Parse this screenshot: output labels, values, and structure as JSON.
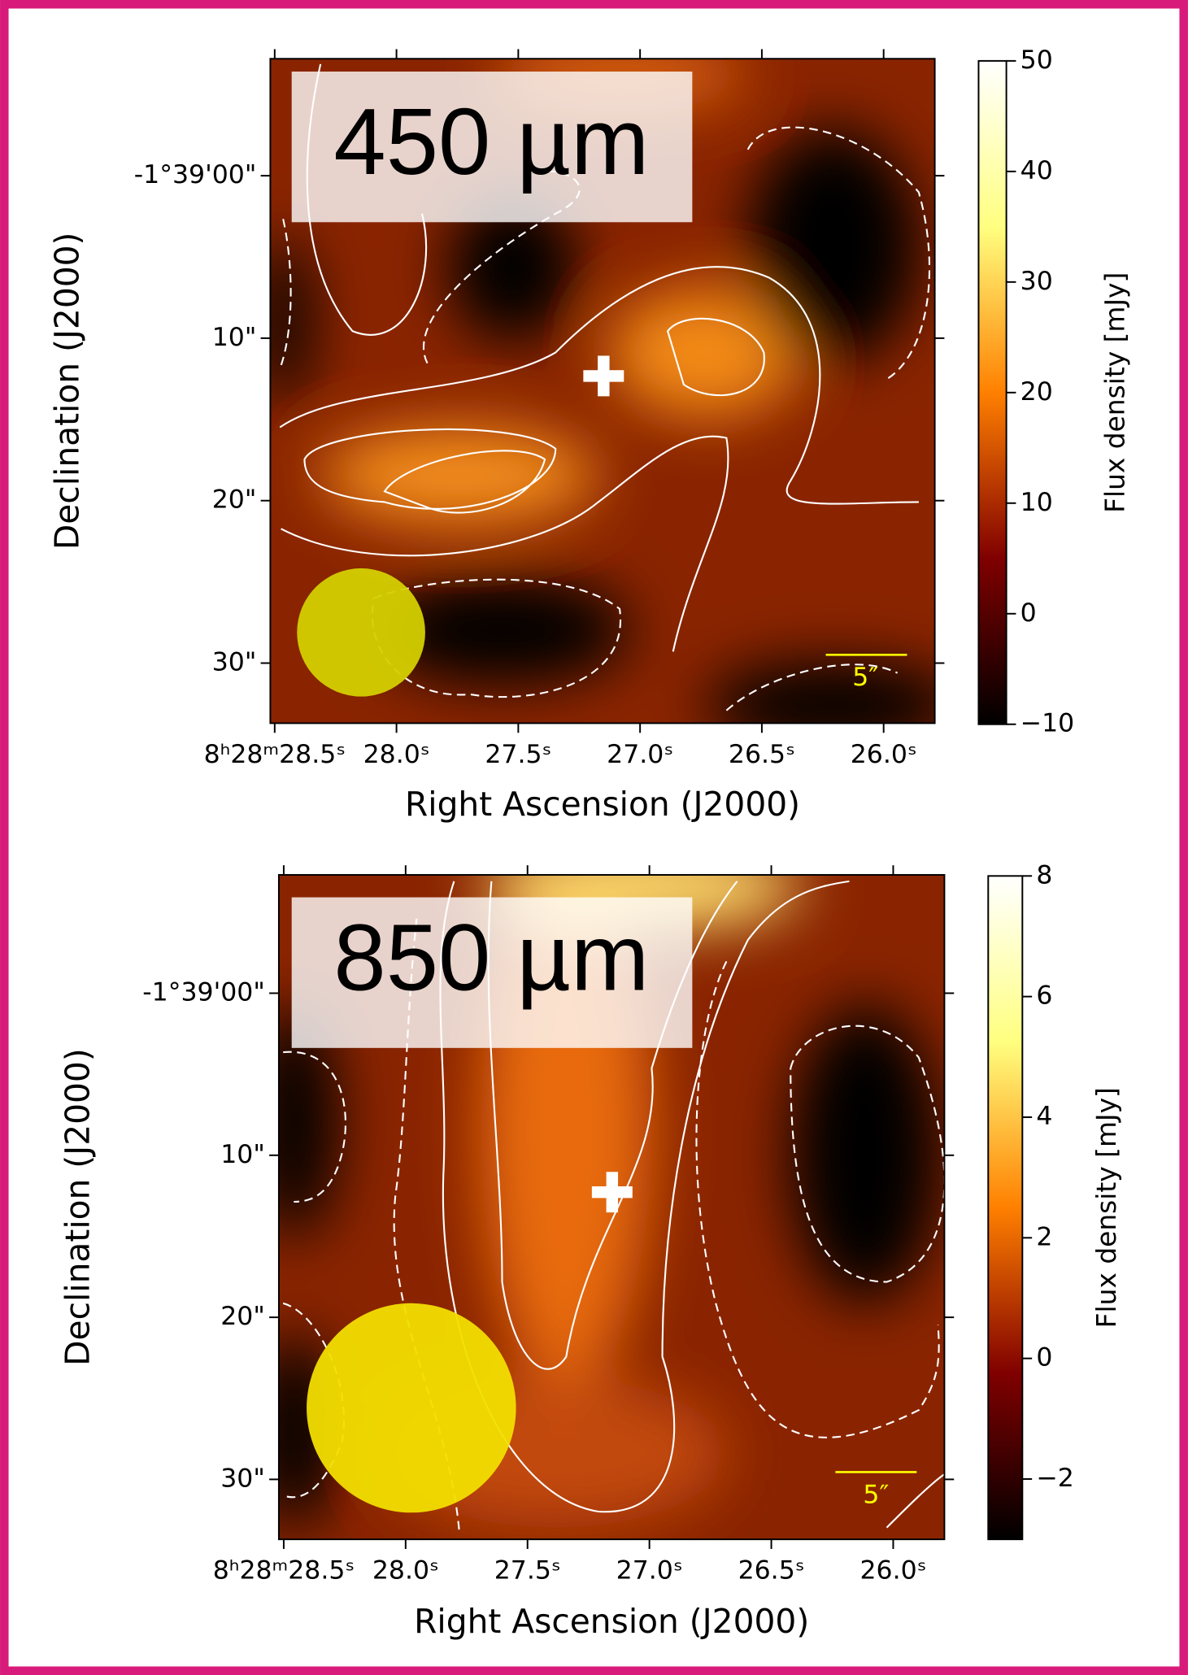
{
  "chart_data": [
    {
      "type": "image",
      "title": "450 µm",
      "colormap": "afmhot",
      "xlabel": "Right Ascension (J2000)",
      "ylabel": "Declination (J2000)",
      "colorbar_label": "Flux density [mJy]",
      "xlim": [
        28.518,
        25.79
      ],
      "ylim": [
        -7.2,
        33.7
      ],
      "xticks": [
        {
          "value": 28.5,
          "label": "8ʰ28ᵐ28.5ˢ"
        },
        {
          "value": 28.0,
          "label": "28.0ˢ"
        },
        {
          "value": 27.5,
          "label": "27.5ˢ"
        },
        {
          "value": 27.0,
          "label": "27.0ˢ"
        },
        {
          "value": 26.5,
          "label": "26.5ˢ"
        },
        {
          "value": 26.0,
          "label": "26.0ˢ"
        }
      ],
      "yticks": [
        {
          "value": 0,
          "label": "-1°39'00\""
        },
        {
          "value": 10,
          "label": "10\""
        },
        {
          "value": 20,
          "label": "20\""
        },
        {
          "value": 30,
          "label": "30\""
        }
      ],
      "clim": [
        -10,
        50
      ],
      "cticks": [
        50,
        40,
        30,
        20,
        10,
        0,
        {
          "value": -10,
          "label": "−10"
        }
      ],
      "scalebar_label": "5″"
    },
    {
      "type": "image",
      "title": "850 µm",
      "colormap": "afmhot",
      "xlabel": "Right Ascension (J2000)",
      "ylabel": "Declination (J2000)",
      "colorbar_label": "Flux density [mJy]",
      "xlim": [
        28.52,
        25.79
      ],
      "ylim": [
        -7.3,
        33.7
      ],
      "xticks": [
        {
          "value": 28.5,
          "label": "8ʰ28ᵐ28.5ˢ"
        },
        {
          "value": 28.0,
          "label": "28.0ˢ"
        },
        {
          "value": 27.5,
          "label": "27.5ˢ"
        },
        {
          "value": 27.0,
          "label": "27.0ˢ"
        },
        {
          "value": 26.5,
          "label": "26.5ˢ"
        },
        {
          "value": 26.0,
          "label": "26.0ˢ"
        }
      ],
      "yticks": [
        {
          "value": 0,
          "label": "-1°39'00\""
        },
        {
          "value": 10,
          "label": "10\""
        },
        {
          "value": 20,
          "label": "20\""
        },
        {
          "value": 30,
          "label": "30\""
        }
      ],
      "clim": [
        -3,
        8
      ],
      "cticks": [
        8,
        6,
        4,
        2,
        0,
        {
          "value": -2,
          "label": "−2"
        }
      ],
      "scalebar_label": "5″"
    }
  ]
}
